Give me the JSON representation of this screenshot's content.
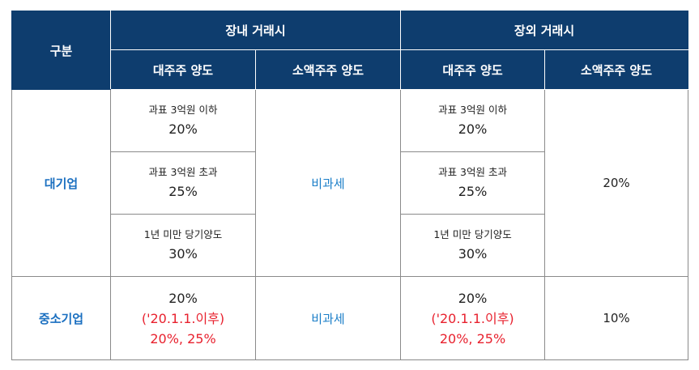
{
  "header": {
    "category": "구분",
    "onmarket": "장내 거래시",
    "offmarket": "장외 거래시",
    "major": "대주주 양도",
    "minor": "소액주주 양도",
    "major2": "대주주 양도",
    "minor2": "소액주주 양도"
  },
  "large": {
    "label": "대기업",
    "on_major": [
      {
        "cond": "과표 3억원 이하",
        "rate": "20%"
      },
      {
        "cond": "과표 3억원 초과",
        "rate": "25%"
      },
      {
        "cond": "1년 미만 당기양도",
        "rate": "30%"
      }
    ],
    "on_minor": "비과세",
    "off_major": [
      {
        "cond": "과표 3억원 이하",
        "rate": "20%"
      },
      {
        "cond": "과표 3억원 초과",
        "rate": "25%"
      },
      {
        "cond": "1년 미만 당기양도",
        "rate": "30%"
      }
    ],
    "off_minor": "20%"
  },
  "sme": {
    "label": "중소기업",
    "on_major": {
      "rate": "20%",
      "since": "('20.1.1.이후)",
      "new_rate": "20%, 25%"
    },
    "on_minor": "비과세",
    "off_major": {
      "rate": "20%",
      "since": "('20.1.1.이후)",
      "new_rate": "20%, 25%"
    },
    "off_minor": "10%"
  },
  "colors": {
    "header_bg": "#0e3d6e",
    "category_text": "#1a6fc0",
    "highlight": "#e8212e"
  }
}
